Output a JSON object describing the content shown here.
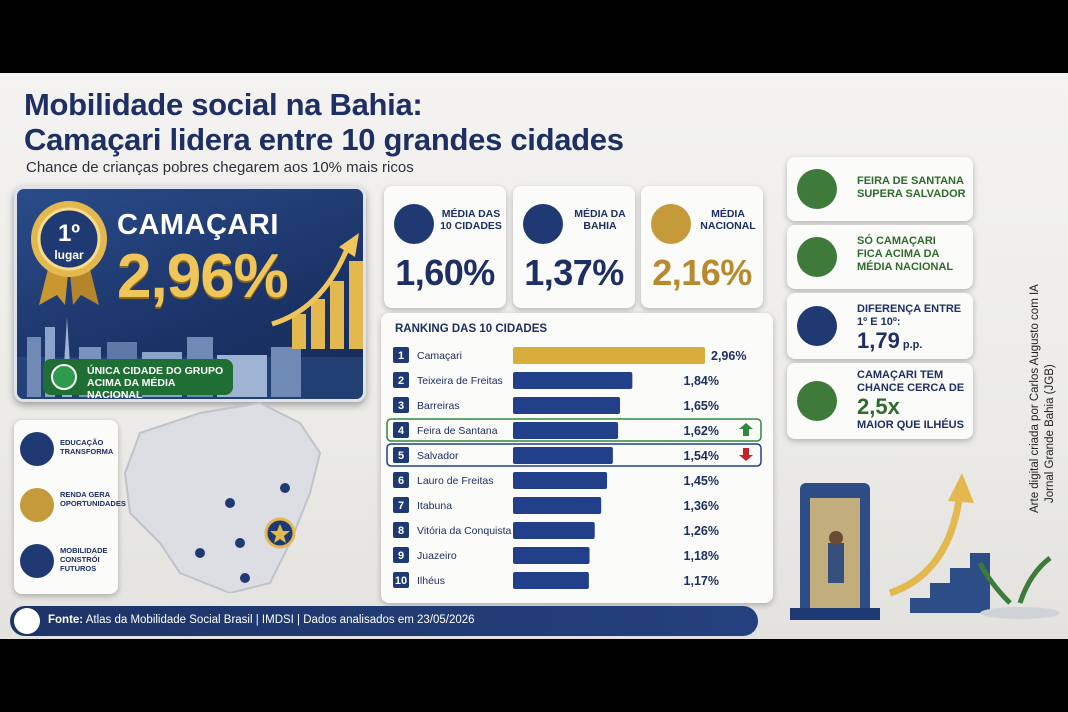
{
  "title_line1": "Mobilidade social na Bahia:",
  "title_line2": "Camaçari lidera entre 10 grandes cidades",
  "subtitle": "Chance de crianças pobres chegarem aos 10% mais ricos",
  "credit_line1": "Arte digital criada por Carlos Augusto com IA",
  "credit_line2": "Jornal Grande Bahia (JGB)",
  "hero": {
    "medal_top": "1º",
    "medal_bottom": "lugar",
    "city": "CAMAÇARI",
    "value": "2,96%",
    "badge": "ÚNICA CIDADE DO GRUPO ACIMA DA MÉDIA NACIONAL"
  },
  "stats": [
    {
      "label": "MÉDIA DAS 10 CIDADES",
      "value": "1,60%",
      "icon": "buildings-icon"
    },
    {
      "label": "MÉDIA DA BAHIA",
      "value": "1,37%",
      "icon": "bahia-map-icon"
    },
    {
      "label": "MÉDIA NACIONAL",
      "value": "2,16%",
      "icon": "brazil-map-icon"
    }
  ],
  "insights": [
    {
      "text": "FEIRA DE SANTANA SUPERA SALVADOR",
      "icon": "people-up-icon"
    },
    {
      "text": "SÓ CAMAÇARI FICA ACIMA DA MÉDIA NACIONAL",
      "icon": "award-icon"
    },
    {
      "text": "DIFERENÇA ENTRE 1º E 10º:",
      "big": "1,79",
      "unit": "p.p.",
      "icon": "bars-icon"
    },
    {
      "text_top": "CAMAÇARI TEM CHANCE CERCA DE",
      "big": "2,5x",
      "text_bottom": "MAIOR QUE ILHÉUS",
      "icon": "growth-icon"
    }
  ],
  "legend": [
    {
      "text": "EDUCAÇÃO TRANSFORMA",
      "icon": "graduation-cap-icon"
    },
    {
      "text": "RENDA GERA OPORTUNIDADES",
      "icon": "income-chart-icon"
    },
    {
      "text": "MOBILIDADE CONSTRÓI FUTUROS",
      "icon": "community-icon"
    }
  ],
  "footer": {
    "source_label": "Fonte:",
    "source_text": " Atlas da Mobilidade Social Brasil | IMDSI | Dados analisados em 23/05/2026"
  },
  "chart_data": {
    "type": "bar",
    "title": "RANKING DAS 10 CIDADES",
    "categories": [
      "Camaçari",
      "Teixeira de Freitas",
      "Barreiras",
      "Feira de Santana",
      "Salvador",
      "Lauro de Freitas",
      "Itabuna",
      "Vitória da Conquista",
      "Juazeiro",
      "Ilhéus"
    ],
    "ranks": [
      "1",
      "2",
      "3",
      "4",
      "5",
      "6",
      "7",
      "8",
      "9",
      "10"
    ],
    "values": [
      2.96,
      1.84,
      1.65,
      1.62,
      1.54,
      1.45,
      1.36,
      1.26,
      1.18,
      1.17
    ],
    "labels": [
      "2,96%",
      "1,84%",
      "1,65%",
      "1,62%",
      "1,54%",
      "1,45%",
      "1,36%",
      "1,26%",
      "1,18%",
      "1,17%"
    ],
    "highlight_up": "Feira de Santana",
    "highlight_down": "Salvador",
    "colors": {
      "leader": "#d8ad3c",
      "bar": "#223f8a",
      "up": "#2e8b3e",
      "down": "#c4222a"
    },
    "xlim": [
      0,
      2.96
    ]
  }
}
